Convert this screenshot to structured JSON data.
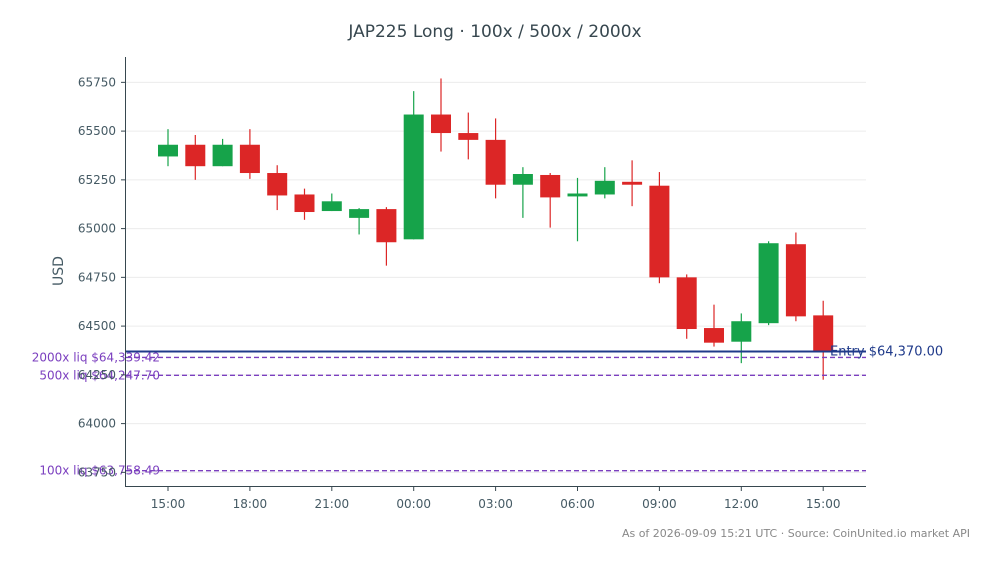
{
  "chart_data": {
    "type": "candlestick",
    "title": "JAP225 Long · 100x / 500x / 2000x",
    "ylabel": "USD",
    "ylim": [
      63680,
      65880
    ],
    "yticks": [
      63750,
      64000,
      64250,
      64500,
      64750,
      65000,
      65250,
      65500,
      65750
    ],
    "xticks": [
      {
        "hour_index": 0,
        "label": "15:00"
      },
      {
        "hour_index": 3,
        "label": "18:00"
      },
      {
        "hour_index": 6,
        "label": "21:00"
      },
      {
        "hour_index": 9,
        "label": "00:00"
      },
      {
        "hour_index": 12,
        "label": "03:00"
      },
      {
        "hour_index": 15,
        "label": "06:00"
      },
      {
        "hour_index": 18,
        "label": "09:00"
      },
      {
        "hour_index": 21,
        "label": "12:00"
      },
      {
        "hour_index": 24,
        "label": "15:00"
      }
    ],
    "candles": [
      {
        "time": "15:00",
        "open": 65370,
        "high": 65510,
        "low": 65320,
        "close": 65430
      },
      {
        "time": "16:00",
        "open": 65430,
        "high": 65480,
        "low": 65250,
        "close": 65320
      },
      {
        "time": "17:00",
        "open": 65320,
        "high": 65460,
        "low": 65320,
        "close": 65430
      },
      {
        "time": "18:00",
        "open": 65430,
        "high": 65510,
        "low": 65255,
        "close": 65285
      },
      {
        "time": "19:00",
        "open": 65285,
        "high": 65325,
        "low": 65095,
        "close": 65170
      },
      {
        "time": "20:00",
        "open": 65175,
        "high": 65205,
        "low": 65045,
        "close": 65085
      },
      {
        "time": "21:00",
        "open": 65090,
        "high": 65180,
        "low": 65090,
        "close": 65140
      },
      {
        "time": "22:00",
        "open": 65055,
        "high": 65105,
        "low": 64970,
        "close": 65100
      },
      {
        "time": "23:00",
        "open": 65100,
        "high": 65110,
        "low": 64810,
        "close": 64930
      },
      {
        "time": "00:00",
        "open": 64945,
        "high": 65705,
        "low": 64945,
        "close": 65585
      },
      {
        "time": "01:00",
        "open": 65585,
        "high": 65770,
        "low": 65395,
        "close": 65490
      },
      {
        "time": "02:00",
        "open": 65490,
        "high": 65595,
        "low": 65355,
        "close": 65455
      },
      {
        "time": "03:00",
        "open": 65455,
        "high": 65565,
        "low": 65155,
        "close": 65225
      },
      {
        "time": "04:00",
        "open": 65225,
        "high": 65315,
        "low": 65055,
        "close": 65280
      },
      {
        "time": "05:00",
        "open": 65275,
        "high": 65285,
        "low": 65005,
        "close": 65160
      },
      {
        "time": "06:00",
        "open": 65165,
        "high": 65260,
        "low": 64935,
        "close": 65180
      },
      {
        "time": "07:00",
        "open": 65175,
        "high": 65315,
        "low": 65155,
        "close": 65245
      },
      {
        "time": "08:00",
        "open": 65240,
        "high": 65350,
        "low": 65115,
        "close": 65225
      },
      {
        "time": "09:00",
        "open": 65220,
        "high": 65290,
        "low": 64720,
        "close": 64750
      },
      {
        "time": "10:00",
        "open": 64750,
        "high": 64765,
        "low": 64435,
        "close": 64485
      },
      {
        "time": "11:00",
        "open": 64490,
        "high": 64610,
        "low": 64395,
        "close": 64415
      },
      {
        "time": "12:00",
        "open": 64420,
        "high": 64565,
        "low": 64310,
        "close": 64525
      },
      {
        "time": "13:00",
        "open": 64515,
        "high": 64935,
        "low": 64505,
        "close": 64925
      },
      {
        "time": "14:00",
        "open": 64920,
        "high": 64980,
        "low": 64525,
        "close": 64550
      },
      {
        "time": "15:00",
        "open": 64555,
        "high": 64630,
        "low": 64225,
        "close": 64370
      }
    ],
    "entry": {
      "value": 64370.0,
      "label": "Entry $64,370.00",
      "color": "#1f3a8a"
    },
    "liquidation_levels": [
      {
        "value": 64339.42,
        "label": "2000x liq $64,339.42"
      },
      {
        "value": 64247.7,
        "label": "500x liq $64,247.70"
      },
      {
        "value": 63758.49,
        "label": "100x liq $63,758.49"
      }
    ],
    "colors": {
      "up": "#16a34a",
      "down": "#dc2626",
      "liq": "#7b3fbf",
      "axis": "#37474f"
    },
    "grid": true
  },
  "footer": "As of 2026-09-09 15:21 UTC · Source: CoinUnited.io market API"
}
